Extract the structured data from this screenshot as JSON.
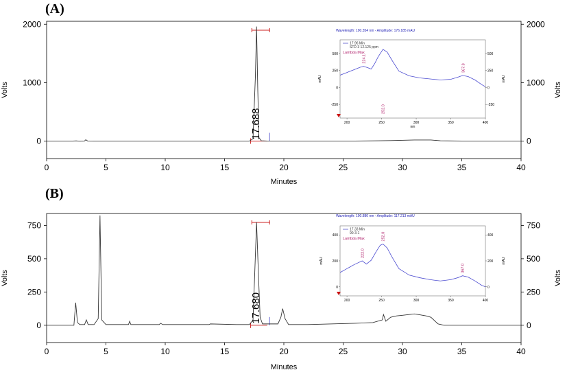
{
  "chart_data": [
    {
      "type": "line",
      "panel_label": "(A)",
      "xlabel": "Minutes",
      "ylabel": "Volts",
      "xlim": [
        0,
        40
      ],
      "ylim": [
        -300,
        2050
      ],
      "x_ticks": [
        "0",
        "5",
        "10",
        "15",
        "20",
        "25",
        "30",
        "35",
        "40"
      ],
      "y_ticks_left": [
        "0",
        "1000",
        "2000"
      ],
      "y_ticks_right": [
        "0",
        "1000",
        "2000"
      ],
      "peak_label": "17.688",
      "series": [
        {
          "x": [
            0,
            2.2,
            2.5,
            2.8,
            3.2,
            3.3,
            3.45,
            4,
            10,
            17.1,
            17.4,
            17.6,
            17.7,
            17.8,
            17.9,
            18.1,
            18.6,
            20,
            26,
            28,
            29,
            31,
            32.4,
            33.2,
            35,
            40
          ],
          "y": [
            0,
            0,
            3,
            -2,
            2,
            22,
            2,
            0,
            0,
            0,
            40,
            1100,
            1960,
            900,
            60,
            5,
            0,
            0,
            0,
            5,
            8,
            18,
            18,
            5,
            0,
            0
          ]
        }
      ],
      "inset": {
        "header": "Wavelength: 190.354 nm - Amplitude: 176.185 mAU",
        "legend": [
          "17.96 Min",
          "STD 3 12.125 ppm"
        ],
        "lambda_label": "Lambda Max",
        "xlabel": "nm",
        "ylabel_left": "mAU",
        "ylabel_right": "mAU",
        "xlim": [
          190,
          400
        ],
        "ylim": [
          -450,
          700
        ],
        "x_ticks": [
          "200",
          "250",
          "300",
          "350",
          "400"
        ],
        "y_ticks_left": [
          "500",
          "250",
          "0",
          "-250"
        ],
        "y_ticks_right": [
          "500",
          "250",
          "0",
          "-250"
        ],
        "peak_labels": [
          "224.1",
          "252.0",
          "367.8"
        ],
        "x": [
          190,
          200,
          210,
          220,
          224,
          230,
          235,
          240,
          245,
          252,
          258,
          265,
          275,
          290,
          305,
          320,
          335,
          350,
          360,
          367,
          375,
          385,
          395,
          400
        ],
        "y": [
          180,
          220,
          260,
          300,
          310,
          290,
          270,
          350,
          450,
          560,
          520,
          400,
          240,
          170,
          140,
          125,
          110,
          120,
          150,
          175,
          160,
          110,
          40,
          10
        ]
      }
    },
    {
      "type": "line",
      "panel_label": "(B)",
      "xlabel": "Minutes",
      "ylabel": "Volts",
      "xlim": [
        0,
        40
      ],
      "ylim": [
        -130,
        840
      ],
      "x_ticks": [
        "0",
        "5",
        "10",
        "15",
        "20",
        "25",
        "30",
        "35",
        "40"
      ],
      "y_ticks_left": [
        "0",
        "250",
        "500",
        "750"
      ],
      "y_ticks_right": [
        "0",
        "250",
        "500",
        "750"
      ],
      "peak_label": "17.680",
      "series": [
        {
          "x": [
            0,
            2.3,
            2.45,
            2.6,
            2.8,
            3.2,
            3.35,
            3.5,
            4,
            4.35,
            4.5,
            4.65,
            5,
            6.9,
            7.0,
            7.1,
            9.5,
            9.6,
            9.8,
            13.7,
            13.8,
            16,
            17.1,
            17.4,
            17.55,
            17.7,
            17.85,
            18.0,
            18.2,
            19.5,
            19.75,
            19.9,
            20.1,
            20.4,
            22,
            26,
            27.5,
            28.3,
            28.4,
            28.6,
            29,
            29.5,
            30,
            30.5,
            31,
            31.5,
            32,
            32.4,
            33,
            33.5,
            35,
            40
          ],
          "y": [
            0,
            0,
            170,
            20,
            5,
            5,
            40,
            5,
            5,
            50,
            825,
            40,
            5,
            5,
            30,
            5,
            5,
            15,
            5,
            5,
            10,
            5,
            5,
            40,
            400,
            775,
            400,
            60,
            10,
            10,
            60,
            125,
            50,
            5,
            5,
            15,
            20,
            40,
            80,
            30,
            60,
            70,
            75,
            80,
            85,
            78,
            70,
            60,
            10,
            0,
            0,
            0
          ]
        }
      ],
      "inset": {
        "header": "Wavelength: 190.880 nm - Amplitude: 117.213 mAU",
        "legend": [
          "17.33 Min",
          "90-3-1"
        ],
        "lambda_label": "Lambda Max",
        "xlabel": "",
        "ylabel_left": "mAU",
        "ylabel_right": "mAU",
        "xlim": [
          190,
          400
        ],
        "ylim": [
          -70,
          470
        ],
        "x_ticks": [
          "200",
          "250",
          "300",
          "350",
          "400"
        ],
        "y_ticks_left": [
          "400",
          "200",
          "0"
        ],
        "y_ticks_right": [
          "400",
          "200",
          "0"
        ],
        "peak_labels": [
          "222.0",
          "252.0",
          "367.0"
        ],
        "x": [
          190,
          200,
          210,
          222,
          228,
          235,
          242,
          248,
          252,
          258,
          265,
          275,
          290,
          305,
          320,
          335,
          350,
          360,
          367,
          375,
          385,
          395,
          400
        ],
        "y": [
          110,
          140,
          170,
          200,
          175,
          205,
          270,
          320,
          330,
          300,
          230,
          140,
          90,
          70,
          55,
          45,
          55,
          70,
          85,
          75,
          45,
          10,
          0
        ]
      }
    }
  ]
}
